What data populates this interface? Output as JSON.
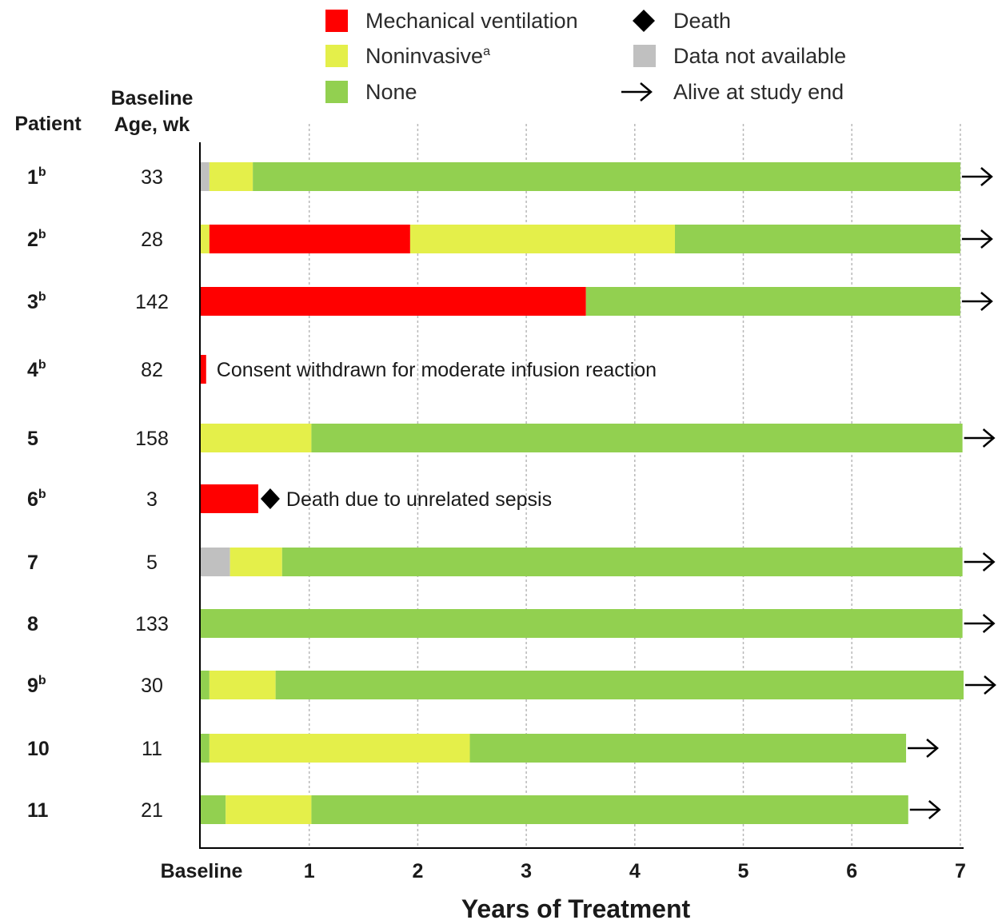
{
  "chart_data": {
    "type": "bar",
    "orientation": "horizontal-stacked-timeline",
    "xlabel": "Years of Treatment",
    "x_ticks": [
      "Baseline",
      "1",
      "2",
      "3",
      "4",
      "5",
      "6",
      "7"
    ],
    "xlim": [
      0,
      7
    ],
    "grid": "vertical dotted",
    "legend_position": "top",
    "headers": {
      "patient": "Patient",
      "age_line1": "Baseline",
      "age_line2": "Age, wk"
    },
    "legend": [
      {
        "key": "mv",
        "label": "Mechanical ventilation",
        "sup": "",
        "color": "#ff0000",
        "shape": "square"
      },
      {
        "key": "death",
        "label": "Death",
        "sup": "",
        "color": "#000000",
        "shape": "diamond"
      },
      {
        "key": "ni",
        "label": "Noninvasive",
        "sup": "a",
        "color": "#e4ef4a",
        "shape": "square"
      },
      {
        "key": "na",
        "label": "Data not available",
        "sup": "",
        "color": "#c0c0c0",
        "shape": "square"
      },
      {
        "key": "none",
        "label": "None",
        "sup": "",
        "color": "#92d050",
        "shape": "square"
      },
      {
        "key": "alive",
        "label": "Alive at study end",
        "sup": "",
        "color": "#000000",
        "shape": "arrow"
      }
    ],
    "colors": {
      "mv": "#ff0000",
      "ni": "#e4ef4a",
      "none": "#92d050",
      "na": "#c0c0c0"
    },
    "patients": [
      {
        "id": "1",
        "sup": "b",
        "age": "33",
        "segments": [
          {
            "s": "na",
            "to": 0.08
          },
          {
            "s": "ni",
            "to": 0.48
          },
          {
            "s": "none",
            "to": 7.0
          }
        ],
        "alive": true
      },
      {
        "id": "2",
        "sup": "b",
        "age": "28",
        "segments": [
          {
            "s": "ni",
            "to": 0.08
          },
          {
            "s": "mv",
            "to": 1.93
          },
          {
            "s": "ni",
            "to": 4.37
          },
          {
            "s": "none",
            "to": 7.0
          }
        ],
        "alive": true
      },
      {
        "id": "3",
        "sup": "b",
        "age": "142",
        "segments": [
          {
            "s": "mv",
            "to": 3.55
          },
          {
            "s": "none",
            "to": 7.0
          }
        ],
        "alive": true
      },
      {
        "id": "4",
        "sup": "b",
        "age": "82",
        "segments": [
          {
            "s": "mv",
            "to": 0.05
          }
        ],
        "alive": false,
        "note": "Consent withdrawn  for moderate infusion reaction"
      },
      {
        "id": "5",
        "sup": "",
        "age": "158",
        "segments": [
          {
            "s": "ni",
            "to": 1.02
          },
          {
            "s": "none",
            "to": 7.02
          }
        ],
        "alive": true
      },
      {
        "id": "6",
        "sup": "b",
        "age": "3",
        "segments": [
          {
            "s": "mv",
            "to": 0.53
          }
        ],
        "alive": false,
        "death": true,
        "note": "Death due to unrelated sepsis"
      },
      {
        "id": "7",
        "sup": "",
        "age": "5",
        "segments": [
          {
            "s": "na",
            "to": 0.27
          },
          {
            "s": "ni",
            "to": 0.75
          },
          {
            "s": "none",
            "to": 7.02
          }
        ],
        "alive": true
      },
      {
        "id": "8",
        "sup": "",
        "age": "133",
        "segments": [
          {
            "s": "none",
            "to": 7.02
          }
        ],
        "alive": true
      },
      {
        "id": "9",
        "sup": "b",
        "age": "30",
        "segments": [
          {
            "s": "none",
            "to": 0.08
          },
          {
            "s": "ni",
            "to": 0.69
          },
          {
            "s": "none",
            "to": 7.03
          }
        ],
        "alive": true
      },
      {
        "id": "10",
        "sup": "",
        "age": "11",
        "segments": [
          {
            "s": "none",
            "to": 0.08
          },
          {
            "s": "ni",
            "to": 2.48
          },
          {
            "s": "none",
            "to": 6.5
          }
        ],
        "alive": true
      },
      {
        "id": "11",
        "sup": "",
        "age": "21",
        "segments": [
          {
            "s": "none",
            "to": 0.23
          },
          {
            "s": "ni",
            "to": 1.02
          },
          {
            "s": "none",
            "to": 6.52
          }
        ],
        "alive": true
      }
    ]
  }
}
